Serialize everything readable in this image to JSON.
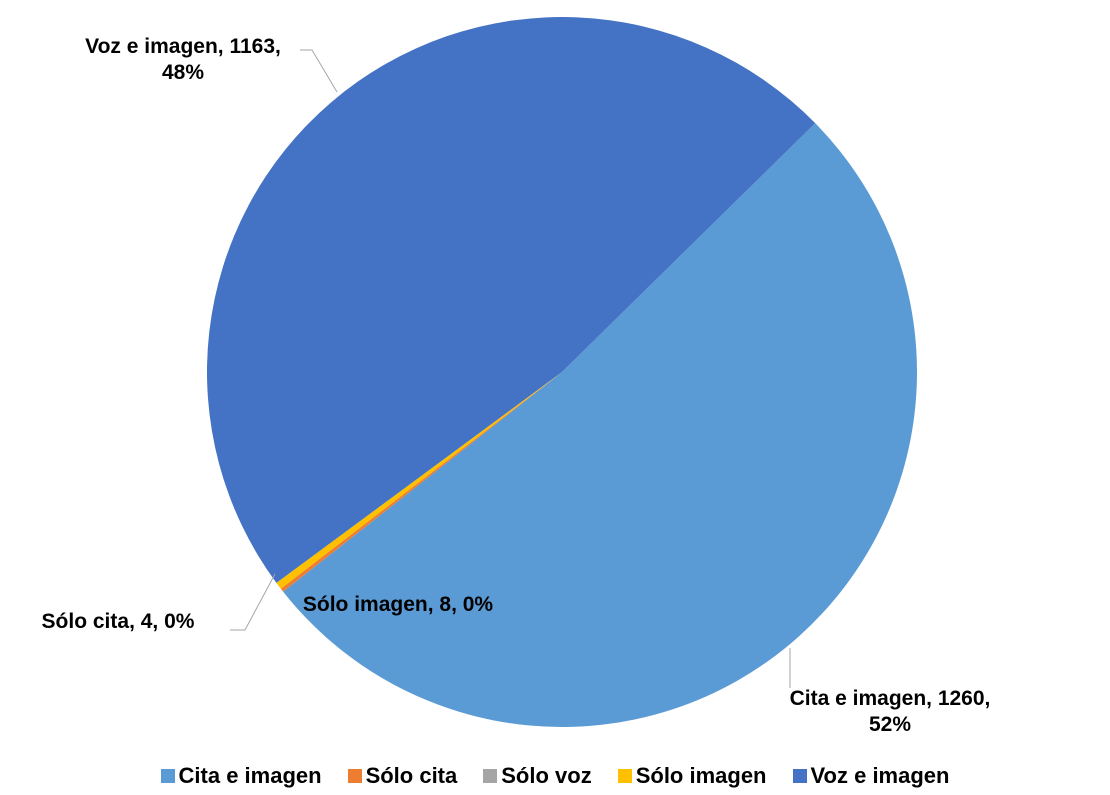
{
  "chart_data": {
    "type": "pie",
    "categories": [
      "Cita e imagen",
      "Sólo cita",
      "Sólo voz",
      "Sólo imagen",
      "Voz e imagen"
    ],
    "values": [
      1260,
      4,
      0,
      8,
      1163
    ],
    "value_labels": [
      "Cita e imagen, 1260, 52%",
      "Sólo cita, 4, 0%",
      null,
      "Sólo imagen, 8, 0%",
      "Voz e imagen, 1163, 48%"
    ],
    "colors": [
      "#5b9bd5",
      "#ed7d31",
      "#a5a5a5",
      "#ffc000",
      "#4472c4"
    ],
    "legend": "bottom"
  }
}
